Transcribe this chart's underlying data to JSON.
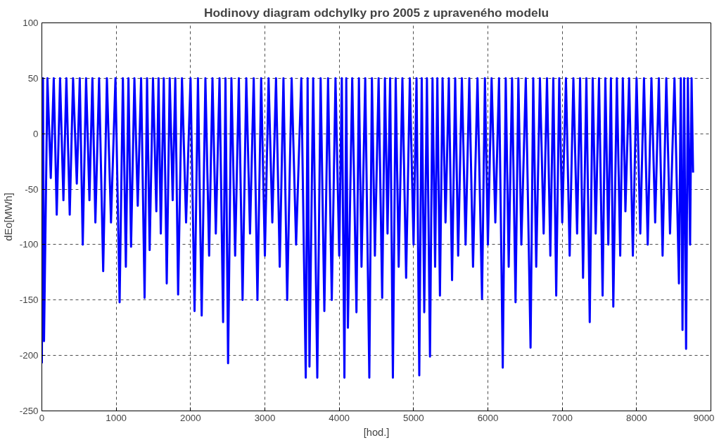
{
  "chart_data": {
    "type": "line",
    "title": "Hodinovy diagram odchylky pro 2005 z upraveného modelu",
    "xlabel": "[hod.]",
    "ylabel": "dEo[MWh]",
    "xlim": [
      0,
      9000
    ],
    "xticks": [
      0,
      1000,
      2000,
      3000,
      4000,
      5000,
      6000,
      7000,
      8000,
      9000
    ],
    "ylim": [
      -250,
      100
    ],
    "yticks": [
      -250,
      -200,
      -150,
      -100,
      -50,
      0,
      50,
      100
    ],
    "grid": true,
    "line_style": "solid",
    "series": [
      {
        "color": "#0000ff",
        "x": [
          0,
          15,
          29,
          75,
          120,
          160,
          200,
          245,
          290,
          330,
          375,
          420,
          470,
          510,
          550,
          595,
          640,
          680,
          720,
          770,
          825,
          875,
          930,
          990,
          1046,
          1090,
          1130,
          1165,
          1200,
          1245,
          1290,
          1335,
          1382,
          1415,
          1450,
          1495,
          1540,
          1570,
          1600,
          1640,
          1680,
          1720,
          1760,
          1795,
          1833,
          1885,
          1940,
          2000,
          2054,
          2100,
          2150,
          2200,
          2250,
          2295,
          2340,
          2390,
          2438,
          2470,
          2505,
          2550,
          2600,
          2650,
          2700,
          2750,
          2800,
          2850,
          2900,
          2950,
          3000,
          3050,
          3100,
          3150,
          3200,
          3250,
          3300,
          3360,
          3420,
          3490,
          3550,
          3575,
          3600,
          3650,
          3705,
          3750,
          3800,
          3850,
          3900,
          3950,
          4000,
          4035,
          4070,
          4095,
          4117,
          4175,
          4232,
          4265,
          4300,
          4350,
          4405,
          4440,
          4480,
          4530,
          4578,
          4615,
          4650,
          4685,
          4722,
          4760,
          4800,
          4850,
          4900,
          4950,
          5000,
          5040,
          5077,
          5110,
          5144,
          5180,
          5221,
          5255,
          5290,
          5320,
          5355,
          5390,
          5430,
          5475,
          5518,
          5560,
          5600,
          5650,
          5700,
          5750,
          5800,
          5860,
          5921,
          5960,
          6000,
          6050,
          6100,
          6150,
          6200,
          6240,
          6280,
          6325,
          6372,
          6410,
          6450,
          6510,
          6574,
          6610,
          6650,
          6700,
          6750,
          6795,
          6840,
          6880,
          6919,
          6960,
          7000,
          7050,
          7100,
          7150,
          7200,
          7240,
          7280,
          7325,
          7370,
          7410,
          7450,
          7495,
          7543,
          7580,
          7620,
          7655,
          7687,
          7735,
          7780,
          7815,
          7850,
          7900,
          7950,
          8000,
          8050,
          8100,
          8150,
          8200,
          8250,
          8300,
          8350,
          8400,
          8450,
          8510,
          8570,
          8595,
          8618,
          8640,
          8666,
          8690,
          8720,
          8740,
          8760
        ],
        "values": [
          -207,
          50,
          -187,
          50,
          -40,
          50,
          -73,
          50,
          -60,
          50,
          -73,
          50,
          -45,
          50,
          -100,
          50,
          -60,
          50,
          -80,
          50,
          -124,
          50,
          -80,
          50,
          -152,
          50,
          -120,
          50,
          -102,
          50,
          -65,
          50,
          -148,
          50,
          -105,
          50,
          -70,
          50,
          -90,
          50,
          -135,
          50,
          -60,
          50,
          -145,
          50,
          -80,
          50,
          -160,
          50,
          -164,
          50,
          -110,
          50,
          -90,
          50,
          -170,
          50,
          -207,
          50,
          -110,
          50,
          -150,
          50,
          -90,
          50,
          -150,
          50,
          -110,
          50,
          -80,
          50,
          -120,
          50,
          -150,
          50,
          -100,
          50,
          -220,
          50,
          -210,
          50,
          -220,
          50,
          -160,
          50,
          -150,
          50,
          -110,
          50,
          -220,
          50,
          -175,
          50,
          -161,
          50,
          -120,
          50,
          -220,
          50,
          -110,
          50,
          -148,
          50,
          -90,
          50,
          -220,
          50,
          -120,
          50,
          -130,
          50,
          -100,
          50,
          -218,
          50,
          -161,
          50,
          -201,
          50,
          -120,
          50,
          -146,
          50,
          -80,
          50,
          -132,
          50,
          -110,
          50,
          -100,
          50,
          -120,
          50,
          -149,
          50,
          -100,
          50,
          -80,
          50,
          -211,
          50,
          -120,
          50,
          -152,
          50,
          -100,
          50,
          -193,
          50,
          -120,
          50,
          -90,
          50,
          -110,
          50,
          -146,
          50,
          -80,
          50,
          -110,
          50,
          -90,
          50,
          -130,
          50,
          -170,
          50,
          -90,
          50,
          -146,
          50,
          -100,
          50,
          -156,
          50,
          -110,
          50,
          -70,
          50,
          -110,
          50,
          -90,
          50,
          -100,
          50,
          -80,
          50,
          -110,
          50,
          -90,
          50,
          -135,
          50,
          -177,
          50,
          -194,
          50,
          -100,
          50,
          -35
        ]
      }
    ]
  }
}
